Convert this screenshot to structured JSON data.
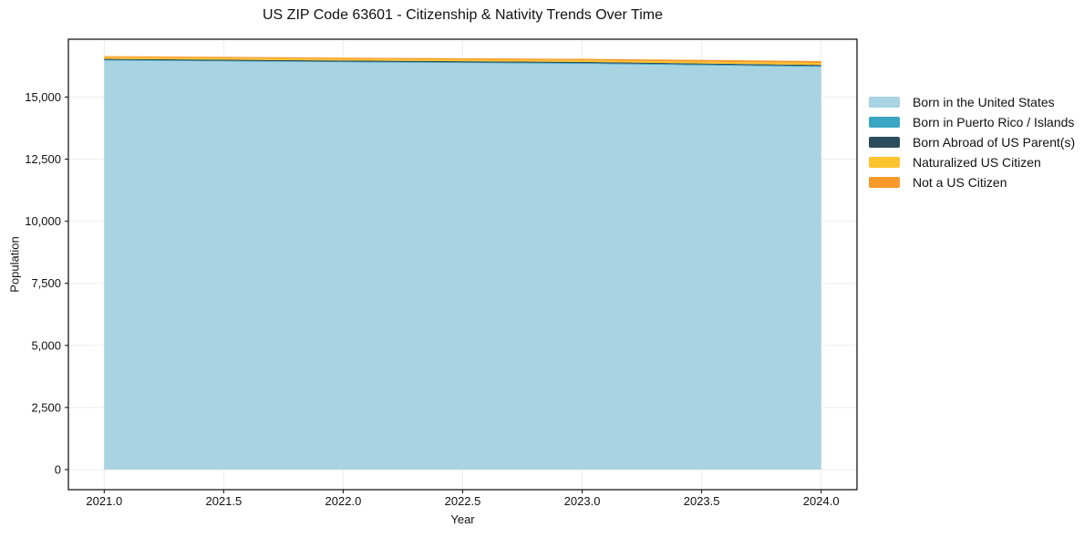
{
  "title": "US ZIP Code 63601 - Citizenship & Nativity Trends Over Time",
  "axes": {
    "x_label": "Year",
    "y_label": "Population"
  },
  "colors": {
    "background": "#ffffff",
    "grid": "#ededed",
    "spine": "#1a1a1a",
    "text": "#111111"
  },
  "chart_data": {
    "type": "area",
    "stacked": true,
    "title": "US ZIP Code 63601 - Citizenship & Nativity Trends Over Time",
    "xlabel": "Year",
    "ylabel": "Population",
    "grid": true,
    "legend_position": "right-outside",
    "x": [
      2021,
      2022,
      2023,
      2024
    ],
    "series": [
      {
        "id": "born-us",
        "name": "Born in the United States",
        "color": "#a7d3e3",
        "values": [
          16470,
          16400,
          16340,
          16215
        ]
      },
      {
        "id": "born-pr",
        "name": "Born in Puerto Rico / Islands",
        "color": "#3aa6c4",
        "values": [
          25,
          25,
          30,
          35
        ]
      },
      {
        "id": "born-abroad",
        "name": "Born Abroad of US Parent(s)",
        "color": "#2b4c5c",
        "values": [
          45,
          45,
          45,
          45
        ]
      },
      {
        "id": "naturalized",
        "name": "Naturalized US Citizen",
        "color": "#fcc32d",
        "values": [
          70,
          70,
          70,
          75
        ]
      },
      {
        "id": "not-citizen",
        "name": "Not a US Citizen",
        "color": "#f8992b",
        "values": [
          40,
          50,
          55,
          80
        ]
      }
    ],
    "xlim": [
      2020.85,
      2024.15
    ],
    "ylim": [
      -810,
      17330
    ],
    "xticks": {
      "values": [
        2021.0,
        2021.5,
        2022.0,
        2022.5,
        2023.0,
        2023.5,
        2024.0
      ],
      "labels": [
        "2021.0",
        "2021.5",
        "2022.0",
        "2022.5",
        "2023.0",
        "2023.5",
        "2024.0"
      ]
    },
    "yticks": {
      "values": [
        0,
        2500,
        5000,
        7500,
        10000,
        12500,
        15000
      ],
      "labels": [
        "0",
        "2,500",
        "5,000",
        "7,500",
        "10,000",
        "12,500",
        "15,000"
      ]
    }
  }
}
